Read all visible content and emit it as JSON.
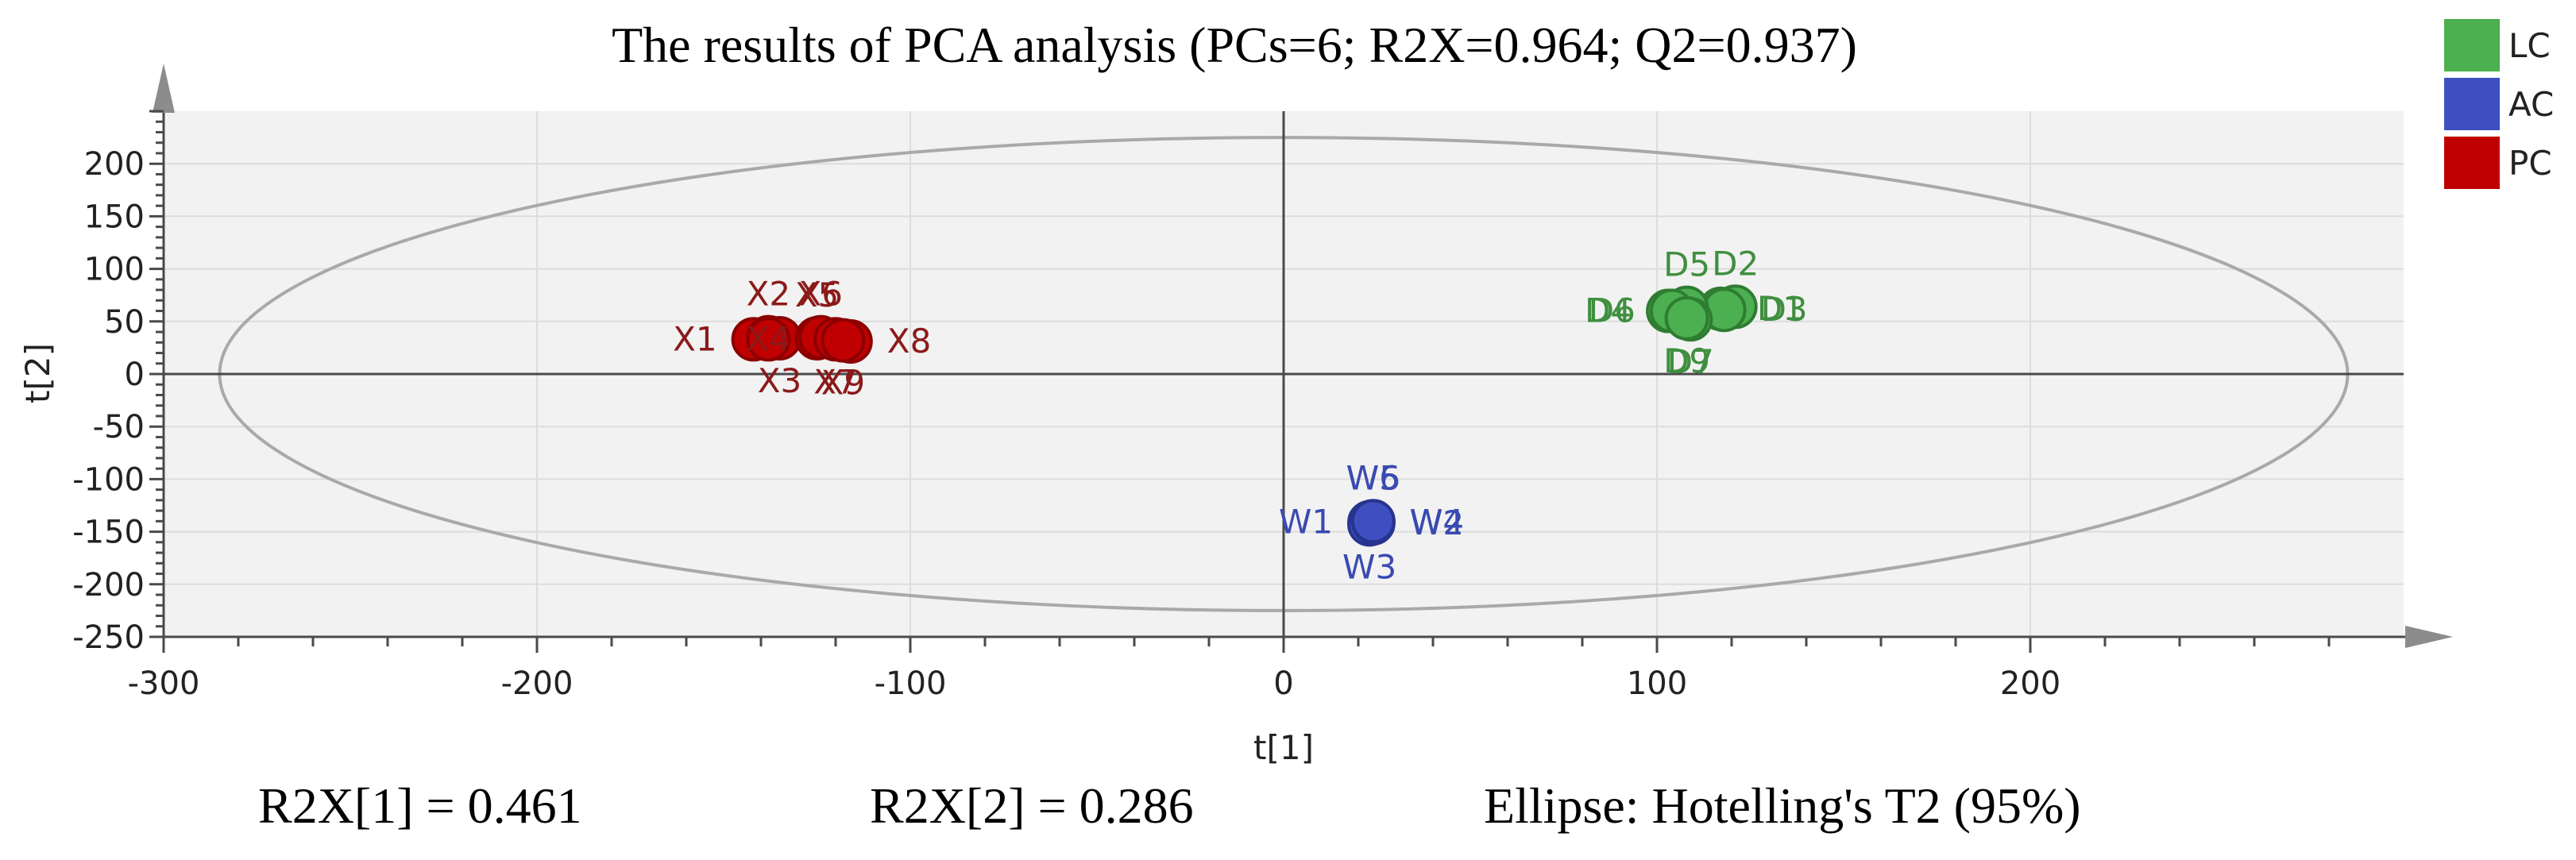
{
  "chart_data": {
    "type": "scatter",
    "title": "The results of PCA analysis (PCs=6; R2X=0.964; Q2=0.937)",
    "xlabel": "t[1]",
    "ylabel": "t[2]",
    "xlim": [
      -300,
      300
    ],
    "ylim": [
      -250,
      250
    ],
    "x_ticks": [
      -300,
      -200,
      -100,
      0,
      100,
      200
    ],
    "y_ticks": [
      -250,
      -200,
      -150,
      -100,
      -50,
      0,
      50,
      100,
      150,
      200
    ],
    "grid": true,
    "legend_position": "top-right",
    "ellipse": {
      "label": "Hotelling's T2 (95%)",
      "center": [
        0,
        0
      ],
      "a": 285,
      "b": 225
    },
    "series": [
      {
        "name": "LC",
        "color": "#4caf50",
        "stroke": "#2e7d32",
        "label_color": "#3f8f3f",
        "points": [
          {
            "label": "D1",
            "x": 117,
            "y": 62,
            "lpos": "right"
          },
          {
            "label": "D2",
            "x": 121,
            "y": 64,
            "lpos": "above"
          },
          {
            "label": "D3",
            "x": 118,
            "y": 61,
            "lpos": "right"
          },
          {
            "label": "D4",
            "x": 103,
            "y": 60,
            "lpos": "left"
          },
          {
            "label": "D5",
            "x": 108,
            "y": 63,
            "lpos": "above"
          },
          {
            "label": "D6",
            "x": 104,
            "y": 60,
            "lpos": "left"
          },
          {
            "label": "D7",
            "x": 109,
            "y": 52,
            "lpos": "below"
          },
          {
            "label": "D9",
            "x": 108,
            "y": 53,
            "lpos": "below"
          }
        ]
      },
      {
        "name": "AC",
        "color": "#3e4fc0",
        "stroke": "#27348f",
        "label_color": "#3a4ab0",
        "points": [
          {
            "label": "W1",
            "x": 23,
            "y": -141,
            "lpos": "left"
          },
          {
            "label": "W2",
            "x": 24,
            "y": -142,
            "lpos": "right"
          },
          {
            "label": "W3",
            "x": 23,
            "y": -143,
            "lpos": "below"
          },
          {
            "label": "W4",
            "x": 24,
            "y": -141,
            "lpos": "right"
          },
          {
            "label": "W5",
            "x": 24,
            "y": -140,
            "lpos": "above"
          },
          {
            "label": "W6",
            "x": 24,
            "y": -140,
            "lpos": "above"
          }
        ]
      },
      {
        "name": "PC",
        "color": "#c00000",
        "stroke": "#8b0000",
        "label_color": "#8b1a1a",
        "points": [
          {
            "label": "X1",
            "x": -142,
            "y": 33,
            "lpos": "left"
          },
          {
            "label": "X2",
            "x": -138,
            "y": 35,
            "lpos": "above"
          },
          {
            "label": "X3",
            "x": -135,
            "y": 34,
            "lpos": "below"
          },
          {
            "label": "X4",
            "x": -138,
            "y": 33,
            "lpos": "inside"
          },
          {
            "label": "X5",
            "x": -125,
            "y": 34,
            "lpos": "above"
          },
          {
            "label": "X6",
            "x": -124,
            "y": 35,
            "lpos": "above"
          },
          {
            "label": "X7",
            "x": -120,
            "y": 33,
            "lpos": "below"
          },
          {
            "label": "X8",
            "x": -116,
            "y": 31,
            "lpos": "right"
          },
          {
            "label": "X9",
            "x": -118,
            "y": 32,
            "lpos": "below"
          }
        ]
      }
    ],
    "footer": {
      "r2x1": "R2X[1] = 0.461",
      "r2x2": "R2X[2] = 0.286",
      "ellipse_text": "Ellipse: Hotelling's T2 (95%)"
    }
  }
}
